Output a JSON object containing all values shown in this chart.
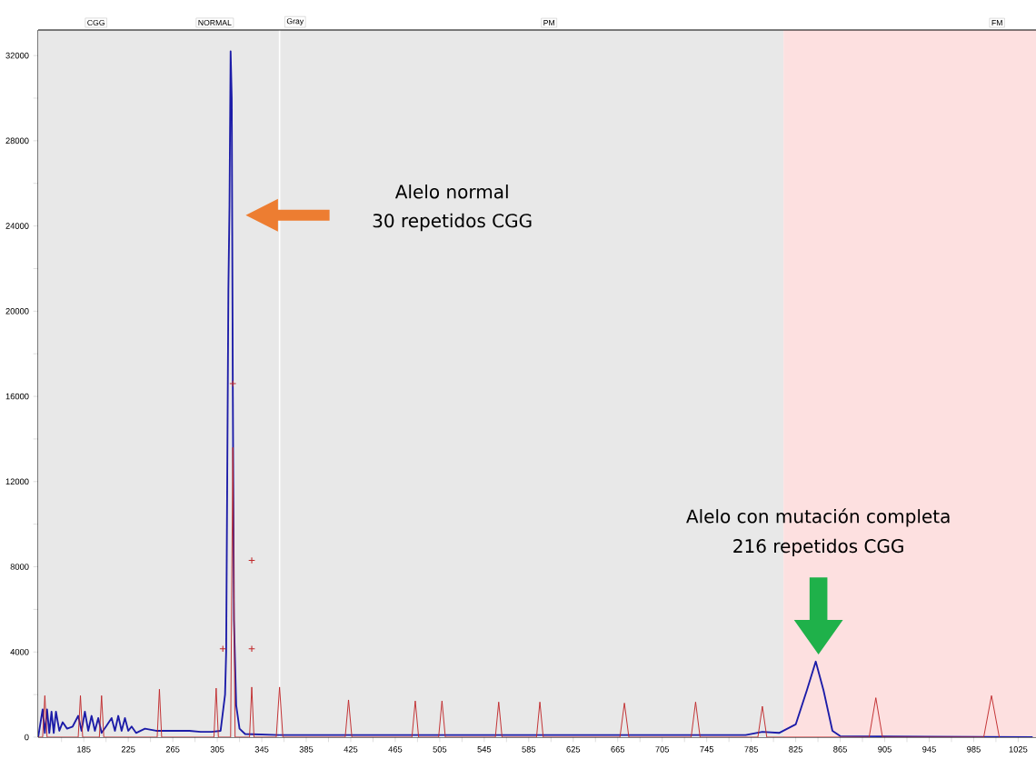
{
  "chart_data": {
    "type": "line",
    "xlim": [
      144,
      1041
    ],
    "ylim": [
      0,
      33200
    ],
    "xticks": [
      {
        "value": 165,
        "label": null
      },
      185,
      {
        "value": 205,
        "label": null
      },
      225,
      {
        "value": 245,
        "label": null
      },
      265,
      {
        "value": 285,
        "label": null
      },
      305,
      {
        "value": 325,
        "label": null
      },
      345,
      {
        "value": 365,
        "label": null
      },
      385,
      {
        "value": 405,
        "label": null
      },
      425,
      {
        "value": 445,
        "label": null
      },
      465,
      {
        "value": 485,
        "label": null
      },
      505,
      {
        "value": 525,
        "label": null
      },
      545,
      {
        "value": 565,
        "label": null
      },
      585,
      {
        "value": 605,
        "label": null
      },
      625,
      {
        "value": 645,
        "label": null
      },
      665,
      {
        "value": 685,
        "label": null
      },
      705,
      {
        "value": 725,
        "label": null
      },
      745,
      {
        "value": 765,
        "label": null
      },
      785,
      {
        "value": 805,
        "label": null
      },
      825,
      {
        "value": 845,
        "label": null
      },
      865,
      {
        "value": 885,
        "label": null
      },
      905,
      {
        "value": 925,
        "label": null
      },
      945,
      {
        "value": 965,
        "label": null
      },
      985,
      {
        "value": 1005,
        "label": null
      },
      1025
    ],
    "yticks": [
      0,
      {
        "value": 2000,
        "label": null
      },
      4000,
      {
        "value": 6000,
        "label": null
      },
      8000,
      {
        "value": 10000,
        "label": null
      },
      12000,
      {
        "value": 14000,
        "label": null
      },
      16000,
      {
        "value": 18000,
        "label": null
      },
      20000,
      {
        "value": 22000,
        "label": null
      },
      24000,
      {
        "value": 26000,
        "label": null
      },
      28000,
      {
        "value": 30000,
        "label": null
      },
      32000
    ],
    "bands": [
      {
        "axis": "x",
        "from": 144,
        "to": 814,
        "color": "#e8e8e8"
      },
      {
        "axis": "x",
        "from": 814,
        "to": 1041,
        "color": "#fde0e0"
      }
    ],
    "ref_lines": [
      {
        "axis": "x",
        "value": 361,
        "color": "#ffffff"
      }
    ],
    "series": [
      {
        "color": "#1c1ca8",
        "x": [
          144,
          148,
          150,
          152,
          154,
          156,
          158,
          160,
          163,
          166,
          170,
          175,
          180,
          183,
          186,
          189,
          192,
          195,
          198,
          201,
          205,
          210,
          213,
          216,
          219,
          222,
          225,
          228,
          232,
          240,
          250,
          260,
          270,
          280,
          290,
          300,
          308,
          312,
          313,
          315,
          316,
          317,
          318,
          319,
          320,
          322,
          325,
          330,
          360,
          780,
          795,
          810,
          825,
          835,
          843,
          850,
          858,
          865,
          1038
        ],
        "values": [
          0,
          1300,
          200,
          1300,
          200,
          1200,
          200,
          1200,
          300,
          700,
          400,
          500,
          1000,
          300,
          1200,
          300,
          1000,
          300,
          900,
          200,
          500,
          900,
          300,
          1000,
          300,
          900,
          300,
          500,
          200,
          400,
          300,
          300,
          300,
          300,
          250,
          250,
          300,
          2000,
          4000,
          21000,
          25000,
          32200,
          30000,
          16000,
          5500,
          1500,
          400,
          150,
          100,
          100,
          250,
          200,
          600,
          2200,
          3550,
          2200,
          300,
          50,
          0
        ]
      },
      {
        "color": "#c0282a",
        "x": [
          144,
          148,
          150,
          152,
          180,
          182,
          184,
          199,
          201,
          203,
          251,
          253,
          255,
          302,
          304,
          306,
          317,
          319,
          321,
          334,
          336,
          338,
          358,
          361,
          364,
          420,
          423,
          426,
          480,
          483,
          486,
          504,
          507,
          510,
          555,
          558,
          561,
          592,
          595,
          598,
          667,
          671,
          675,
          731,
          735,
          739,
          791,
          795,
          799,
          891,
          897,
          903,
          994,
          1001,
          1008
        ],
        "values": [
          0,
          0,
          1950,
          0,
          0,
          1950,
          0,
          0,
          1950,
          0,
          0,
          2250,
          0,
          0,
          2300,
          0,
          0,
          13600,
          0,
          0,
          2350,
          0,
          0,
          2350,
          0,
          0,
          1750,
          0,
          0,
          1700,
          0,
          0,
          1700,
          0,
          0,
          1650,
          0,
          0,
          1650,
          0,
          0,
          1600,
          0,
          0,
          1650,
          0,
          0,
          1450,
          0,
          0,
          1850,
          0,
          0,
          1950,
          0
        ]
      },
      {
        "type": "scatter",
        "marker": "cross",
        "color": "#c0282a",
        "x": [
          310,
          319,
          336,
          336
        ],
        "values": [
          4150,
          16600,
          4150,
          8300
        ]
      }
    ],
    "annotations": [
      "CGG",
      "NORMAL",
      "Gray",
      "PM",
      "FM",
      "Alelo normal",
      "30 repetidos CGG",
      "Alelo con mutación completa",
      "216 repetidos CGG"
    ]
  }
}
